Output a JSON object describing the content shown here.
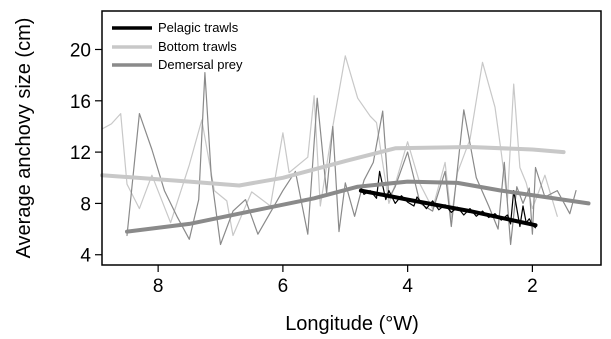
{
  "chart_data": {
    "type": "line",
    "title": "",
    "xlabel": "Longitude (°W)",
    "ylabel": "Average anchovy size (cm)",
    "xlim": [
      8.9,
      0.9
    ],
    "ylim": [
      3.2,
      23.0
    ],
    "x_reversed": true,
    "x_ticks": [
      8,
      6,
      4,
      2
    ],
    "y_ticks": [
      4,
      8,
      12,
      16,
      20
    ],
    "grid": false,
    "legend_position": "top-left",
    "series": [
      {
        "name": "Pelagic trawls",
        "color": "#000000",
        "kind": "raw",
        "x": [
          4.75,
          4.7,
          4.6,
          4.5,
          4.45,
          4.35,
          4.3,
          4.2,
          4.1,
          4.0,
          3.9,
          3.85,
          3.7,
          3.6,
          3.5,
          3.4,
          3.3,
          3.2,
          3.1,
          3.0,
          2.9,
          2.8,
          2.7,
          2.6,
          2.5,
          2.4,
          2.35,
          2.3,
          2.2,
          2.15,
          2.1,
          2.05,
          2.0,
          1.95
        ],
        "y": [
          9.2,
          8.7,
          9.0,
          8.4,
          10.5,
          8.3,
          9.0,
          8.0,
          8.6,
          8.1,
          7.8,
          8.5,
          7.6,
          8.2,
          7.5,
          7.9,
          7.3,
          7.7,
          7.1,
          7.6,
          7.0,
          7.4,
          6.9,
          7.2,
          6.7,
          7.1,
          6.4,
          9.0,
          6.2,
          7.8,
          6.5,
          6.8,
          6.3,
          6.1
        ]
      },
      {
        "name": "Pelagic trawls smooth",
        "color": "#000000",
        "kind": "smooth",
        "x": [
          4.75,
          4.0,
          3.0,
          1.95
        ],
        "y": [
          9.0,
          8.3,
          7.4,
          6.3
        ]
      },
      {
        "name": "Bottom trawls",
        "color": "#c8c8c8",
        "kind": "raw",
        "x": [
          8.9,
          8.75,
          8.6,
          8.5,
          8.3,
          8.1,
          7.8,
          7.5,
          7.3,
          7.1,
          6.9,
          6.8,
          6.5,
          6.2,
          6.0,
          5.9,
          5.6,
          5.5,
          5.4,
          5.2,
          5.0,
          4.8,
          4.6,
          4.5,
          4.3,
          4.2,
          4.0,
          3.8,
          3.6,
          3.4,
          3.3,
          3.2,
          3.0,
          2.8,
          2.6,
          2.5,
          2.4,
          2.3,
          2.2,
          2.1,
          2.0,
          1.8,
          1.6
        ],
        "y": [
          13.8,
          14.2,
          15.0,
          9.5,
          7.6,
          10.2,
          6.5,
          11.0,
          14.5,
          9.0,
          8.2,
          5.5,
          8.9,
          7.8,
          13.5,
          10.4,
          11.6,
          16.4,
          7.8,
          14.0,
          19.5,
          16.2,
          14.8,
          14.3,
          8.0,
          9.5,
          12.8,
          9.5,
          7.6,
          11.2,
          6.8,
          10.4,
          13.0,
          19.0,
          15.5,
          12.0,
          8.2,
          17.3,
          10.8,
          9.6,
          7.6,
          10.2,
          7.0
        ]
      },
      {
        "name": "Bottom trawls smooth",
        "color": "#c8c8c8",
        "kind": "smooth",
        "x": [
          8.9,
          7.5,
          6.7,
          6.0,
          5.0,
          4.2,
          3.0,
          2.0,
          1.5
        ],
        "y": [
          10.2,
          9.7,
          9.4,
          10.0,
          11.3,
          12.3,
          12.4,
          12.2,
          12.0
        ]
      },
      {
        "name": "Demersal prey",
        "color": "#8a8a8a",
        "kind": "raw",
        "x": [
          8.5,
          8.3,
          8.1,
          7.9,
          7.7,
          7.5,
          7.35,
          7.25,
          7.15,
          7.0,
          6.8,
          6.6,
          6.4,
          6.2,
          6.0,
          5.8,
          5.6,
          5.45,
          5.3,
          5.2,
          5.1,
          5.0,
          4.85,
          4.7,
          4.55,
          4.4,
          4.3,
          4.2,
          4.0,
          3.8,
          3.6,
          3.4,
          3.3,
          3.1,
          2.9,
          2.7,
          2.55,
          2.45,
          2.35,
          2.25,
          2.15,
          2.05,
          2.0,
          1.95,
          1.8,
          1.6,
          1.4,
          1.3
        ],
        "y": [
          5.5,
          15.0,
          12.2,
          9.0,
          7.0,
          5.2,
          8.3,
          18.2,
          10.2,
          4.8,
          7.4,
          8.3,
          5.6,
          7.3,
          9.0,
          10.5,
          5.6,
          16.2,
          8.8,
          14.0,
          5.8,
          9.6,
          7.0,
          9.8,
          11.2,
          15.2,
          8.4,
          9.3,
          12.0,
          8.0,
          7.4,
          10.5,
          6.2,
          15.3,
          10.0,
          7.8,
          6.0,
          11.2,
          4.8,
          9.3,
          8.0,
          9.2,
          5.6,
          10.8,
          8.5,
          9.0,
          7.2,
          9.0
        ]
      },
      {
        "name": "Demersal prey smooth",
        "color": "#8a8a8a",
        "kind": "smooth",
        "x": [
          8.5,
          7.5,
          6.5,
          5.5,
          4.8,
          4.0,
          3.2,
          2.5,
          1.8,
          1.1
        ],
        "y": [
          5.8,
          6.4,
          7.4,
          8.4,
          9.3,
          9.7,
          9.6,
          9.0,
          8.5,
          8.0
        ]
      }
    ],
    "legend": [
      {
        "label": "Pelagic trawls",
        "color": "#000000"
      },
      {
        "label": "Bottom trawls",
        "color": "#c8c8c8"
      },
      {
        "label": "Demersal prey",
        "color": "#8a8a8a"
      }
    ]
  }
}
